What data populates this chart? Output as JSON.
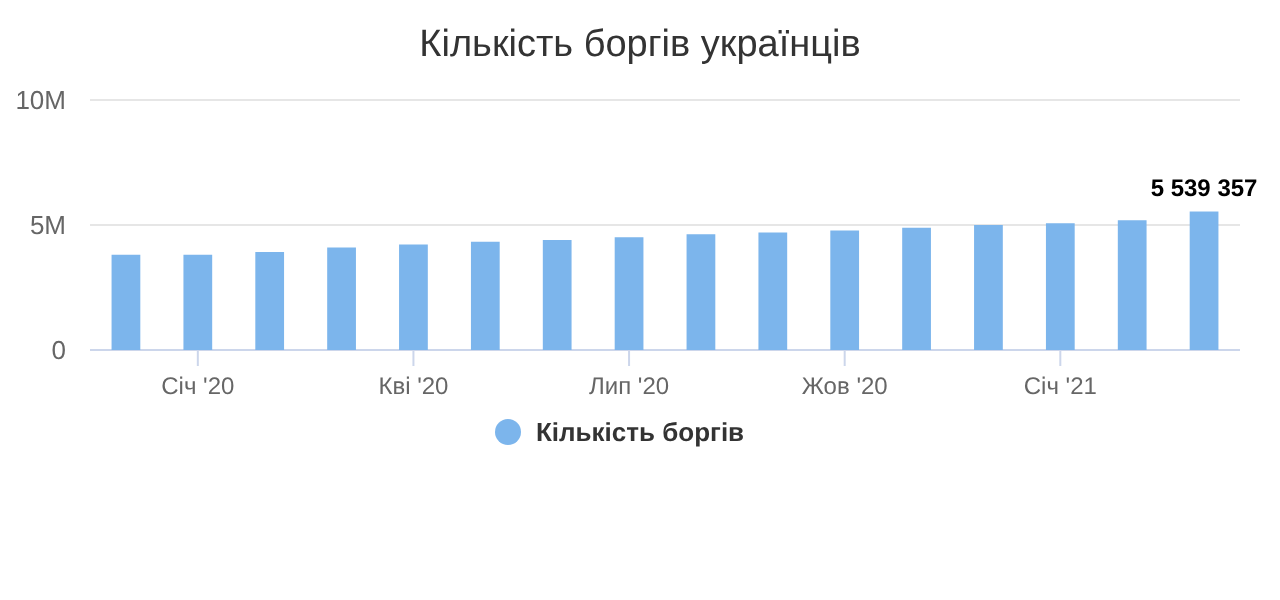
{
  "chart_data": {
    "type": "bar",
    "title": "Кількість боргів українців",
    "categories": [
      null,
      "Січ '20",
      null,
      null,
      "Кві '20",
      null,
      null,
      "Лип '20",
      null,
      null,
      "Жов '20",
      null,
      null,
      "Січ '21",
      null,
      null
    ],
    "series": [
      {
        "name": "Кількість боргів",
        "color": "#7cb5ec",
        "values": [
          3810000,
          3810000,
          3920000,
          4100000,
          4220000,
          4330000,
          4400000,
          4510000,
          4630000,
          4700000,
          4780000,
          4890000,
          5000000,
          5070000,
          5190000,
          5539357
        ],
        "value_labels": [
          null,
          null,
          null,
          null,
          null,
          null,
          null,
          null,
          null,
          null,
          null,
          null,
          null,
          null,
          null,
          "5 539 357"
        ]
      }
    ],
    "ylim": [
      0,
      10000000
    ],
    "yticks": [
      {
        "value": 0,
        "label": "0"
      },
      {
        "value": 5000000,
        "label": "5M"
      },
      {
        "value": 10000000,
        "label": "10M"
      }
    ],
    "grid": "y",
    "legend": "bottom"
  }
}
